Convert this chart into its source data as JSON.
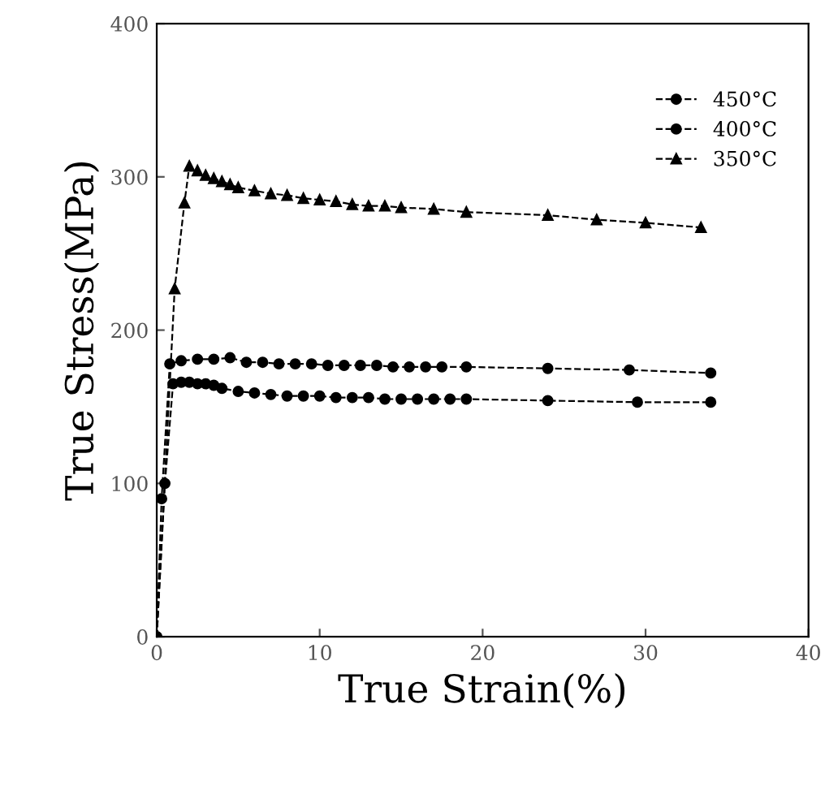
{
  "chart_data": {
    "type": "line",
    "xlabel": "True Strain(%)",
    "ylabel": "True Stress(MPa)",
    "xlim": [
      0,
      40
    ],
    "ylim": [
      0,
      400
    ],
    "xticks": [
      0,
      10,
      20,
      30,
      40
    ],
    "yticks": [
      0,
      100,
      200,
      300,
      400
    ],
    "grid": false,
    "legend": "top right",
    "line_style": "dashed",
    "series": [
      {
        "name": "450°C",
        "color": "#000000",
        "marker": "circle",
        "x": [
          0,
          0.5,
          1.0,
          1.5,
          2,
          2.5,
          3,
          3.5,
          4,
          5,
          6,
          7,
          8,
          9,
          10,
          11,
          12,
          13,
          14,
          15,
          16,
          17,
          18,
          19,
          24,
          29.5,
          34
        ],
        "values": [
          0,
          100,
          165,
          166,
          166,
          165,
          165,
          164,
          162,
          160,
          159,
          158,
          157,
          157,
          157,
          156,
          156,
          156,
          155,
          155,
          155,
          155,
          155,
          155,
          154,
          153,
          153
        ]
      },
      {
        "name": "400°C",
        "color": "#000000",
        "marker": "circle",
        "x": [
          0,
          0.3,
          0.8,
          1.5,
          2.5,
          3.5,
          4.5,
          5.5,
          6.5,
          7.5,
          8.5,
          9.5,
          10.5,
          11.5,
          12.5,
          13.5,
          14.5,
          15.5,
          16.5,
          17.5,
          19,
          24,
          29,
          34
        ],
        "values": [
          0,
          90,
          178,
          180,
          181,
          181,
          182,
          179,
          179,
          178,
          178,
          178,
          177,
          177,
          177,
          177,
          176,
          176,
          176,
          176,
          176,
          175,
          174,
          172
        ]
      },
      {
        "name": "350°C",
        "color": "#000000",
        "marker": "triangle",
        "x": [
          0,
          1.1,
          1.7,
          2.0,
          2.5,
          3,
          3.5,
          4,
          4.5,
          5,
          6,
          7,
          8,
          9,
          10,
          11,
          12,
          13,
          14,
          15,
          17,
          19,
          24,
          27,
          30,
          33.4
        ],
        "values": [
          0,
          227,
          283,
          307,
          304,
          301,
          299,
          297,
          295,
          293,
          291,
          289,
          288,
          286,
          285,
          284,
          282,
          281,
          281,
          280,
          279,
          277,
          275,
          272,
          270,
          267
        ]
      }
    ]
  }
}
